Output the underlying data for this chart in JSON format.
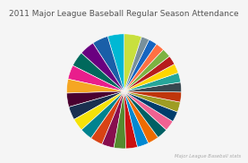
{
  "title": "2011 Major League Baseball Regular Season Attendance",
  "subtitle": "Major League Baseball stats",
  "title_fontsize": 6.5,
  "subtitle_fontsize": 3.8,
  "background_color": "#f5f5f5",
  "startangle": 72,
  "values": [
    3480000,
    3300000,
    3170000,
    3000000,
    2960000,
    2820000,
    2780000,
    2750000,
    2650000,
    2500000,
    2480000,
    2450000,
    2420000,
    2380000,
    2300000,
    2270000,
    2200000,
    2180000,
    2100000,
    2050000,
    2000000,
    1980000,
    1950000,
    1900000,
    1870000,
    1800000,
    1780000,
    1720000,
    1680000,
    1560000
  ],
  "colors": [
    "#c8e03e",
    "#00b8d4",
    "#1a5fa8",
    "#6a0080",
    "#00695c",
    "#e91e8c",
    "#f5a623",
    "#4a0030",
    "#1a3050",
    "#f4e208",
    "#00838f",
    "#d84315",
    "#880e4f",
    "#558b2f",
    "#cc1111",
    "#0288d1",
    "#ef6c00",
    "#006064",
    "#f06292",
    "#003d6b",
    "#9e9d24",
    "#bf360c",
    "#37474f",
    "#26a69a",
    "#ffd600",
    "#b71c1c",
    "#7cb342",
    "#ff7043",
    "#1565c0",
    "#78909c"
  ]
}
